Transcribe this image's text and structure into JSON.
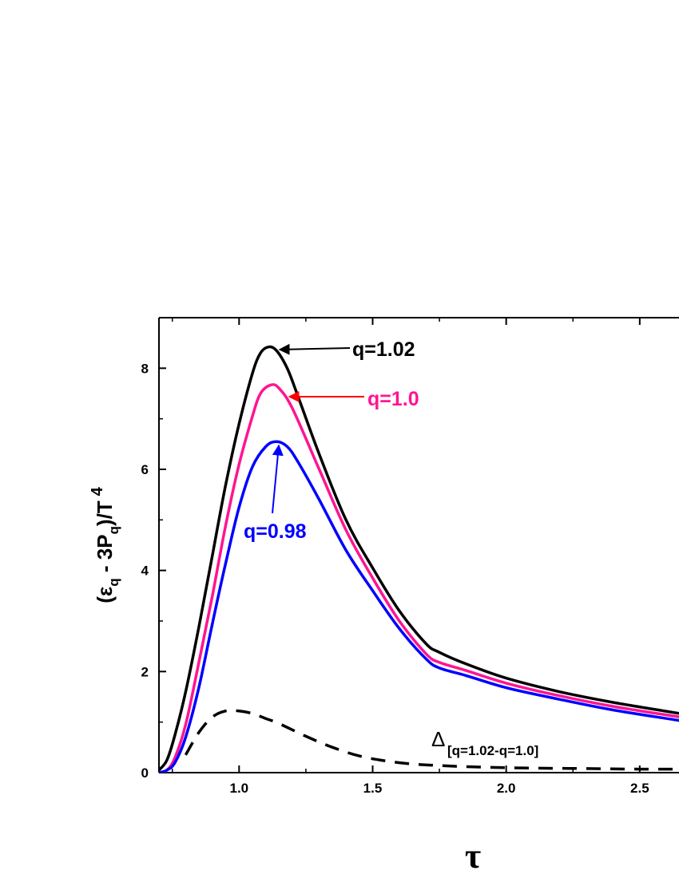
{
  "chart_data": {
    "type": "line",
    "title": "",
    "xlabel": "τ",
    "ylabel": {
      "main": "(ε",
      "sub1": "q",
      "mid": " - 3P",
      "sub2": "q",
      "end": ")/T",
      "sup": "4"
    },
    "xlim": [
      0.7,
      2.65
    ],
    "ylim": [
      0,
      9
    ],
    "x_ticks": [
      "1.0",
      "1.5",
      "2.0",
      "2.5"
    ],
    "x_tick_values": [
      1.0,
      1.5,
      2.0,
      2.5
    ],
    "y_ticks": [
      "0",
      "2",
      "4",
      "6",
      "8"
    ],
    "y_tick_values": [
      0,
      2,
      4,
      6,
      8
    ],
    "grid": false,
    "series": [
      {
        "name": "q=1.02",
        "color": "#000000",
        "dash": "solid",
        "points": [
          [
            0.7,
            0.05
          ],
          [
            0.73,
            0.25
          ],
          [
            0.76,
            0.75
          ],
          [
            0.8,
            1.6
          ],
          [
            0.85,
            2.9
          ],
          [
            0.9,
            4.3
          ],
          [
            0.95,
            5.7
          ],
          [
            1.0,
            6.9
          ],
          [
            1.05,
            7.9
          ],
          [
            1.08,
            8.3
          ],
          [
            1.11,
            8.42
          ],
          [
            1.14,
            8.35
          ],
          [
            1.18,
            8.0
          ],
          [
            1.22,
            7.45
          ],
          [
            1.3,
            6.3
          ],
          [
            1.4,
            5.0
          ],
          [
            1.5,
            4.05
          ],
          [
            1.6,
            3.2
          ],
          [
            1.7,
            2.55
          ],
          [
            1.75,
            2.38
          ],
          [
            1.85,
            2.15
          ],
          [
            2.0,
            1.87
          ],
          [
            2.2,
            1.6
          ],
          [
            2.4,
            1.39
          ],
          [
            2.65,
            1.17
          ]
        ]
      },
      {
        "name": "q=1.0",
        "color": "#ff1493",
        "dash": "solid",
        "points": [
          [
            0.7,
            0.0
          ],
          [
            0.73,
            0.05
          ],
          [
            0.76,
            0.3
          ],
          [
            0.8,
            0.95
          ],
          [
            0.85,
            2.2
          ],
          [
            0.9,
            3.5
          ],
          [
            0.95,
            4.9
          ],
          [
            1.0,
            6.1
          ],
          [
            1.05,
            7.05
          ],
          [
            1.08,
            7.5
          ],
          [
            1.12,
            7.67
          ],
          [
            1.15,
            7.6
          ],
          [
            1.2,
            7.2
          ],
          [
            1.3,
            6.0
          ],
          [
            1.4,
            4.8
          ],
          [
            1.5,
            3.85
          ],
          [
            1.6,
            3.0
          ],
          [
            1.7,
            2.35
          ],
          [
            1.75,
            2.18
          ],
          [
            1.85,
            2.02
          ],
          [
            2.0,
            1.77
          ],
          [
            2.2,
            1.52
          ],
          [
            2.4,
            1.31
          ],
          [
            2.65,
            1.1
          ]
        ]
      },
      {
        "name": "q=0.98",
        "color": "#0000ff",
        "dash": "solid",
        "points": [
          [
            0.7,
            0.0
          ],
          [
            0.73,
            0.05
          ],
          [
            0.76,
            0.2
          ],
          [
            0.8,
            0.7
          ],
          [
            0.85,
            1.7
          ],
          [
            0.9,
            2.95
          ],
          [
            0.95,
            4.15
          ],
          [
            1.0,
            5.25
          ],
          [
            1.05,
            6.05
          ],
          [
            1.1,
            6.45
          ],
          [
            1.14,
            6.55
          ],
          [
            1.18,
            6.45
          ],
          [
            1.22,
            6.15
          ],
          [
            1.3,
            5.4
          ],
          [
            1.4,
            4.4
          ],
          [
            1.5,
            3.6
          ],
          [
            1.6,
            2.85
          ],
          [
            1.7,
            2.25
          ],
          [
            1.75,
            2.07
          ],
          [
            1.85,
            1.92
          ],
          [
            2.0,
            1.68
          ],
          [
            2.2,
            1.45
          ],
          [
            2.4,
            1.24
          ],
          [
            2.65,
            1.03
          ]
        ]
      },
      {
        "name": "Δ[q=1.02-q=1.0]",
        "color": "#000000",
        "dash": "dashed",
        "points": [
          [
            0.8,
            0.35
          ],
          [
            0.85,
            0.8
          ],
          [
            0.9,
            1.1
          ],
          [
            0.95,
            1.22
          ],
          [
            1.0,
            1.22
          ],
          [
            1.05,
            1.17
          ],
          [
            1.1,
            1.07
          ],
          [
            1.15,
            0.97
          ],
          [
            1.25,
            0.72
          ],
          [
            1.35,
            0.5
          ],
          [
            1.45,
            0.33
          ],
          [
            1.55,
            0.23
          ],
          [
            1.65,
            0.17
          ],
          [
            1.75,
            0.14
          ],
          [
            1.9,
            0.11
          ],
          [
            2.1,
            0.09
          ],
          [
            2.3,
            0.08
          ],
          [
            2.5,
            0.07
          ],
          [
            2.65,
            0.07
          ]
        ]
      }
    ],
    "annotations": [
      {
        "text": "q=1.02",
        "color": "#000000",
        "arrow_to": [
          1.14,
          8.42
        ]
      },
      {
        "text": "q=1.0",
        "color": "#ff1493",
        "arrow_to": [
          1.17,
          7.5
        ]
      },
      {
        "text": "q=0.98",
        "color": "#0000ff",
        "arrow_to": [
          1.145,
          6.5
        ]
      },
      {
        "text": "Δ",
        "sub": "[q=1.02-q=1.0]",
        "color": "#000000"
      }
    ]
  }
}
